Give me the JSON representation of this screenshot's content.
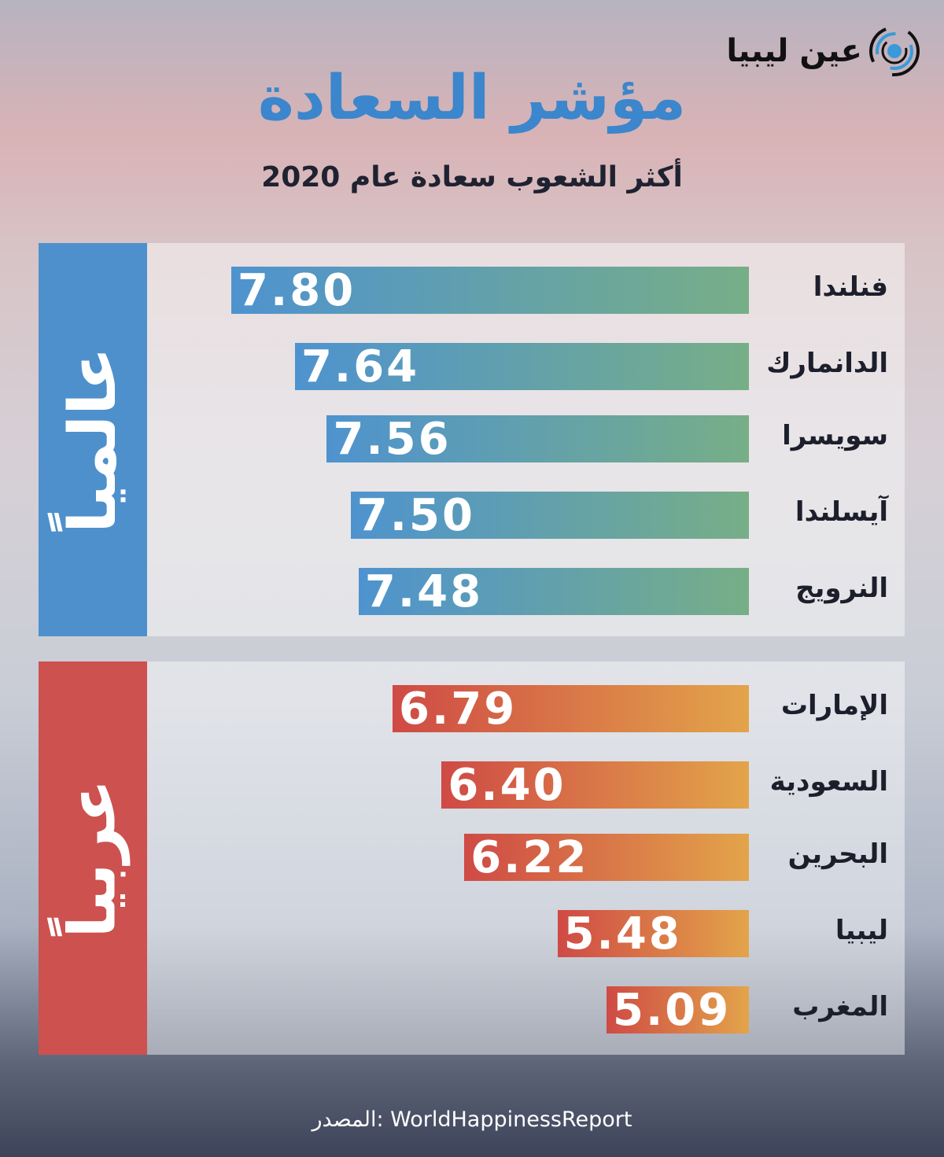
{
  "logo": {
    "text": "عين ليبيا",
    "icon": "eye-swirl-icon"
  },
  "title": "مؤشر السعادة",
  "subtitle": "أكثر الشعوب سعادة عام 2020",
  "source": "المصدر: WorldHappinessReport",
  "chart_data": [
    {
      "type": "bar",
      "orientation": "horizontal",
      "group_label": "عالمياً",
      "color": "#4e90cc",
      "bar_gradient": [
        "#4e93cf",
        "#77ae87"
      ],
      "categories": [
        "فنلندا",
        "الدانمارك",
        "سويسرا",
        "آيسلندا",
        "النرويج"
      ],
      "values": [
        7.8,
        7.64,
        7.56,
        7.5,
        7.48
      ],
      "labels": [
        "7.80",
        "7.64",
        "7.56",
        "7.50",
        "7.48"
      ]
    },
    {
      "type": "bar",
      "orientation": "horizontal",
      "group_label": "عربياً",
      "color": "#cc514f",
      "bar_gradient": [
        "#cf4a45",
        "#e3a44a"
      ],
      "categories": [
        "الإمارات",
        "السعودية",
        "البحرين",
        "ليبيا",
        "المغرب"
      ],
      "values": [
        6.79,
        6.4,
        6.22,
        5.48,
        5.09
      ],
      "labels": [
        "6.79",
        "6.40",
        "6.22",
        "5.48",
        "5.09"
      ]
    }
  ]
}
